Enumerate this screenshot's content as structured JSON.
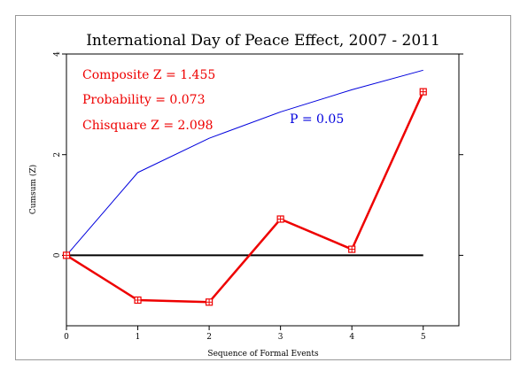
{
  "chart_data": {
    "type": "line",
    "title": "International Day of Peace Effect, 2007 - 2011",
    "xlabel": "Sequence of Formal Events",
    "ylabel": "Cumsum (Z)",
    "xlim": [
      0,
      5.5
    ],
    "ylim": [
      -1.4,
      4
    ],
    "x_ticks": [
      0,
      1,
      2,
      3,
      4,
      5
    ],
    "y_ticks": [
      0,
      2,
      4
    ],
    "grid": false,
    "series": [
      {
        "role": "observed",
        "color": "#ee0000",
        "marker": "boxed-plus",
        "x": [
          0,
          1,
          2,
          3,
          4,
          5
        ],
        "y": [
          0,
          -0.89,
          -0.93,
          0.72,
          0.12,
          3.25
        ]
      },
      {
        "name": "P = 0.05",
        "color": "#0000dd",
        "x": [
          0,
          1,
          2,
          3,
          4,
          5
        ],
        "y": [
          0,
          1.645,
          2.326,
          2.849,
          3.29,
          3.678
        ]
      },
      {
        "role": "baseline",
        "color": "#000000",
        "x": [
          0,
          5
        ],
        "y": [
          0,
          0
        ]
      }
    ],
    "annotations": [
      {
        "text": "Composite Z = 1.455",
        "color": "#ee0000"
      },
      {
        "text": "Probability = 0.073",
        "color": "#ee0000"
      },
      {
        "text": "Chisquare Z = 2.098",
        "color": "#ee0000"
      },
      {
        "text": "P = 0.05",
        "color": "#0000dd"
      }
    ]
  }
}
